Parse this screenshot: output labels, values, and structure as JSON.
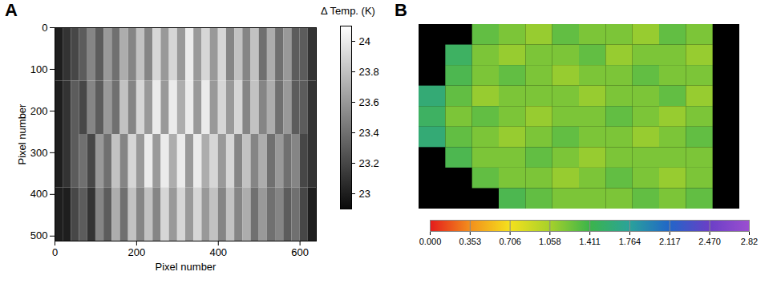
{
  "chart_data": [
    {
      "type": "heatmap",
      "panel": "A",
      "xlabel": "Pixel number",
      "ylabel": "Pixel number",
      "xlim": [
        0,
        640
      ],
      "ylim": [
        0,
        512
      ],
      "xticks": [
        0,
        200,
        400,
        600
      ],
      "yticks": [
        0,
        100,
        200,
        300,
        400,
        500
      ],
      "x_edges": [
        0,
        20,
        40,
        60,
        80,
        100,
        120,
        140,
        160,
        180,
        200,
        220,
        240,
        260,
        280,
        300,
        320,
        340,
        360,
        380,
        400,
        420,
        440,
        460,
        480,
        500,
        520,
        540,
        560,
        580,
        600,
        620,
        640
      ],
      "y_edges": [
        0,
        128,
        256,
        384,
        512
      ],
      "cells": [
        [
          23.0,
          23.1,
          23.2,
          23.3,
          23.5,
          23.3,
          23.6,
          23.4,
          23.7,
          23.5,
          23.8,
          23.5,
          23.9,
          23.6,
          23.9,
          23.6,
          24.0,
          23.6,
          23.9,
          23.6,
          23.9,
          23.5,
          23.8,
          23.5,
          23.8,
          23.4,
          23.7,
          23.4,
          23.6,
          23.3,
          23.3,
          23.1
        ],
        [
          23.0,
          23.1,
          23.3,
          23.2,
          23.5,
          23.3,
          23.6,
          23.4,
          23.8,
          23.5,
          23.9,
          23.6,
          24.0,
          23.6,
          24.0,
          23.7,
          24.0,
          23.6,
          24.0,
          23.6,
          23.9,
          23.6,
          23.9,
          23.5,
          23.8,
          23.5,
          23.7,
          23.4,
          23.6,
          23.3,
          23.3,
          23.1
        ],
        [
          23.0,
          23.1,
          23.3,
          23.4,
          23.2,
          23.6,
          23.4,
          23.8,
          23.5,
          23.9,
          23.6,
          24.0,
          23.6,
          24.0,
          23.7,
          24.0,
          23.6,
          24.0,
          23.7,
          23.9,
          23.6,
          23.9,
          23.5,
          23.8,
          23.5,
          23.7,
          23.4,
          23.6,
          23.4,
          23.5,
          23.2,
          23.1
        ],
        [
          23.0,
          23.0,
          23.2,
          23.3,
          23.1,
          23.5,
          23.3,
          23.7,
          23.4,
          23.8,
          23.5,
          23.8,
          23.5,
          23.9,
          23.6,
          23.9,
          23.6,
          23.9,
          23.6,
          23.8,
          23.5,
          23.8,
          23.5,
          23.7,
          23.4,
          23.6,
          23.4,
          23.5,
          23.3,
          23.4,
          23.2,
          23.0
        ]
      ],
      "colorbar": {
        "label": "Δ Temp. (K)",
        "range": [
          22.9,
          24.1
        ],
        "ticks": [
          23,
          23.2,
          23.4,
          23.6,
          23.8,
          24
        ]
      }
    },
    {
      "type": "heatmap",
      "panel": "B",
      "tick_labels": false,
      "cells": [
        [
          null,
          null,
          1.3,
          1.2,
          1.1,
          1.3,
          1.2,
          1.2,
          1.1,
          1.3,
          1.2,
          null
        ],
        [
          null,
          1.5,
          1.2,
          1.1,
          1.2,
          1.2,
          1.3,
          1.1,
          1.2,
          1.2,
          1.1,
          null
        ],
        [
          null,
          1.4,
          1.2,
          1.3,
          1.2,
          1.1,
          1.2,
          1.2,
          1.3,
          1.2,
          1.2,
          null
        ],
        [
          1.6,
          1.3,
          1.1,
          1.2,
          1.2,
          1.2,
          1.1,
          1.2,
          1.2,
          1.3,
          1.1,
          null
        ],
        [
          1.5,
          1.2,
          1.3,
          1.2,
          1.1,
          1.2,
          1.2,
          1.3,
          1.2,
          1.1,
          1.2,
          null
        ],
        [
          1.6,
          1.3,
          1.2,
          1.1,
          1.2,
          1.3,
          1.2,
          1.2,
          1.1,
          1.2,
          1.3,
          null
        ],
        [
          null,
          1.4,
          1.2,
          1.2,
          1.3,
          1.2,
          1.1,
          1.2,
          1.2,
          1.2,
          1.2,
          null
        ],
        [
          null,
          null,
          1.3,
          1.2,
          1.2,
          1.1,
          1.2,
          1.3,
          1.2,
          1.1,
          1.2,
          null
        ],
        [
          null,
          null,
          null,
          1.4,
          1.3,
          1.2,
          1.2,
          1.2,
          1.3,
          1.2,
          1.3,
          null
        ]
      ],
      "colorbar": {
        "range": [
          0,
          2.82
        ],
        "ticks": [
          {
            "value": 0,
            "label": "0.000"
          },
          0.353,
          0.706,
          1.058,
          1.411,
          1.764,
          2.117,
          {
            "value": 2.47,
            "label": "2.470"
          },
          2.82
        ]
      }
    }
  ]
}
